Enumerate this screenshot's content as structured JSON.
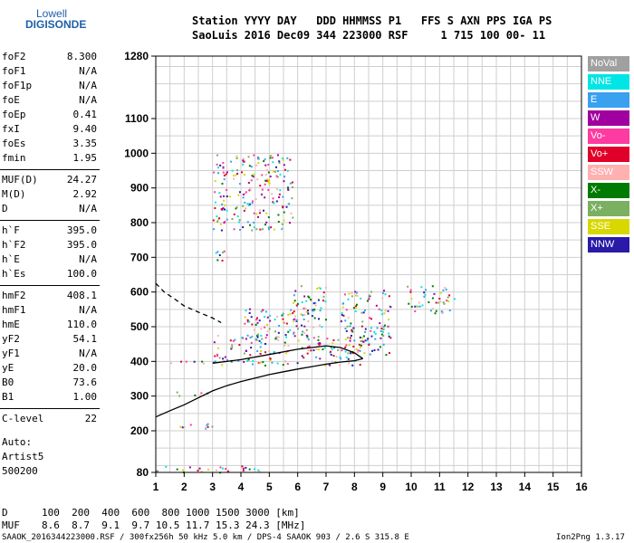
{
  "logo": {
    "line1": "Lowell",
    "line2": "DIGISONDE"
  },
  "header": {
    "row1": "Station YYYY DAY   DDD HHMMSS P1   FFS S AXN PPS IGA PS",
    "row2": "SaoLuis 2016 Dec09 344 223000 RSF     1 715 100 00- 11"
  },
  "params": [
    {
      "name": "foF2",
      "value": "8.300"
    },
    {
      "name": "foF1",
      "value": "N/A"
    },
    {
      "name": "foF1p",
      "value": "N/A"
    },
    {
      "name": "foE",
      "value": "N/A"
    },
    {
      "name": "foEp",
      "value": "0.41"
    },
    {
      "name": "fxI",
      "value": "9.40"
    },
    {
      "name": "foEs",
      "value": "3.35"
    },
    {
      "name": "fmin",
      "value": "1.95"
    },
    {
      "name": "MUF(D)",
      "value": "24.27"
    },
    {
      "name": "M(D)",
      "value": "2.92"
    },
    {
      "name": "D",
      "value": "N/A"
    },
    {
      "name": "h`F",
      "value": "395.0"
    },
    {
      "name": "h`F2",
      "value": "395.0"
    },
    {
      "name": "h`E",
      "value": "N/A"
    },
    {
      "name": "h`Es",
      "value": "100.0"
    },
    {
      "name": "hmF2",
      "value": "408.1"
    },
    {
      "name": "hmF1",
      "value": "N/A"
    },
    {
      "name": "hmE",
      "value": "110.0"
    },
    {
      "name": "yF2",
      "value": "54.1"
    },
    {
      "name": "yF1",
      "value": "N/A"
    },
    {
      "name": "yE",
      "value": "20.0"
    },
    {
      "name": "B0",
      "value": "73.6"
    },
    {
      "name": "B1",
      "value": "1.00"
    },
    {
      "name": "C-level",
      "value": "22"
    }
  ],
  "auto": {
    "line1": "Auto:",
    "line2": "Artist5",
    "line3": "500200"
  },
  "legend": [
    {
      "label": "NoVal",
      "color": "#a0a0a0"
    },
    {
      "label": "NNE",
      "color": "#00e5e5"
    },
    {
      "label": "E",
      "color": "#3aa0f0"
    },
    {
      "label": "W",
      "color": "#a000a0"
    },
    {
      "label": "Vo-",
      "color": "#ff3aa0"
    },
    {
      "label": "Vo+",
      "color": "#e0002a"
    },
    {
      "label": "SSW",
      "color": "#ffb0b0"
    },
    {
      "label": "X-",
      "color": "#007a00"
    },
    {
      "label": "X+",
      "color": "#7ab060"
    },
    {
      "label": "SSE",
      "color": "#d8d800"
    },
    {
      "label": "NNW",
      "color": "#2a1aa8"
    }
  ],
  "chart_data": {
    "type": "scatter",
    "x_ticks": [
      "1",
      "2",
      "3",
      "4",
      "5",
      "6",
      "7",
      "8",
      "9",
      "10",
      "11",
      "12",
      "13",
      "14",
      "15",
      "16"
    ],
    "y_ticks": [
      "80",
      "200",
      "300",
      "400",
      "500",
      "600",
      "700",
      "800",
      "900",
      "1000",
      "1100",
      "1280"
    ],
    "xlim": [
      1,
      16
    ],
    "ylim": [
      80,
      1280
    ],
    "grid": true,
    "series": [
      {
        "color": "#000000",
        "style": "solid",
        "points": [
          [
            1.0,
            240
          ],
          [
            1.5,
            258
          ],
          [
            2.0,
            275
          ],
          [
            2.5,
            295
          ],
          [
            3.0,
            315
          ],
          [
            3.5,
            330
          ],
          [
            4.0,
            342
          ],
          [
            4.5,
            352
          ],
          [
            5.0,
            362
          ],
          [
            5.5,
            370
          ],
          [
            6.0,
            378
          ],
          [
            6.5,
            385
          ],
          [
            7.0,
            392
          ],
          [
            7.5,
            398
          ],
          [
            8.0,
            402
          ],
          [
            8.3,
            408
          ]
        ]
      },
      {
        "color": "#000000",
        "style": "dashed",
        "points": [
          [
            1.0,
            625
          ],
          [
            1.3,
            600
          ],
          [
            1.7,
            578
          ],
          [
            2.0,
            560
          ],
          [
            2.5,
            542
          ],
          [
            3.0,
            525
          ],
          [
            3.3,
            512
          ]
        ]
      },
      {
        "color": "#000000",
        "style": "solid",
        "points": [
          [
            3.0,
            395
          ],
          [
            4.0,
            405
          ],
          [
            5.0,
            420
          ],
          [
            6.0,
            435
          ],
          [
            7.0,
            445
          ],
          [
            7.5,
            440
          ],
          [
            8.0,
            425
          ],
          [
            8.3,
            408
          ]
        ]
      }
    ],
    "echo_regions": [
      {
        "x": [
          1.5,
          2.8
        ],
        "y": [
          300,
          315
        ]
      },
      {
        "x": [
          1.5,
          3.0
        ],
        "y": [
          205,
          225
        ]
      },
      {
        "x": [
          1.0,
          4.8
        ],
        "y": [
          80,
          100
        ]
      },
      {
        "x": [
          1.5,
          3.2
        ],
        "y": [
          395,
          405
        ]
      },
      {
        "x": [
          3.0,
          8.3
        ],
        "y": [
          390,
          480
        ]
      },
      {
        "x": [
          4.0,
          6.5
        ],
        "y": [
          470,
          560
        ]
      },
      {
        "x": [
          5.8,
          7.0
        ],
        "y": [
          500,
          620
        ]
      },
      {
        "x": [
          7.5,
          9.3
        ],
        "y": [
          420,
          610
        ]
      },
      {
        "x": [
          3.0,
          3.8
        ],
        "y": [
          690,
          720
        ]
      },
      {
        "x": [
          3.0,
          5.8
        ],
        "y": [
          780,
          1000
        ]
      },
      {
        "x": [
          9.8,
          11.5
        ],
        "y": [
          540,
          620
        ]
      }
    ]
  },
  "footer": {
    "d_label": "D",
    "d_values": "100  200  400  600  800 1000 1500 3000 [km]",
    "muf_label": "MUF",
    "muf_values": "8.6  8.7  9.1  9.7 10.5 11.7 15.3 24.3 [MHz]",
    "info": "SAAOK_2016344223000.RSF / 300fx256h 50 kHz 5.0 km / DPS-4 SAAOK 903 / 2.6 S 315.8 E",
    "version": "Ion2Png 1.3.17"
  }
}
